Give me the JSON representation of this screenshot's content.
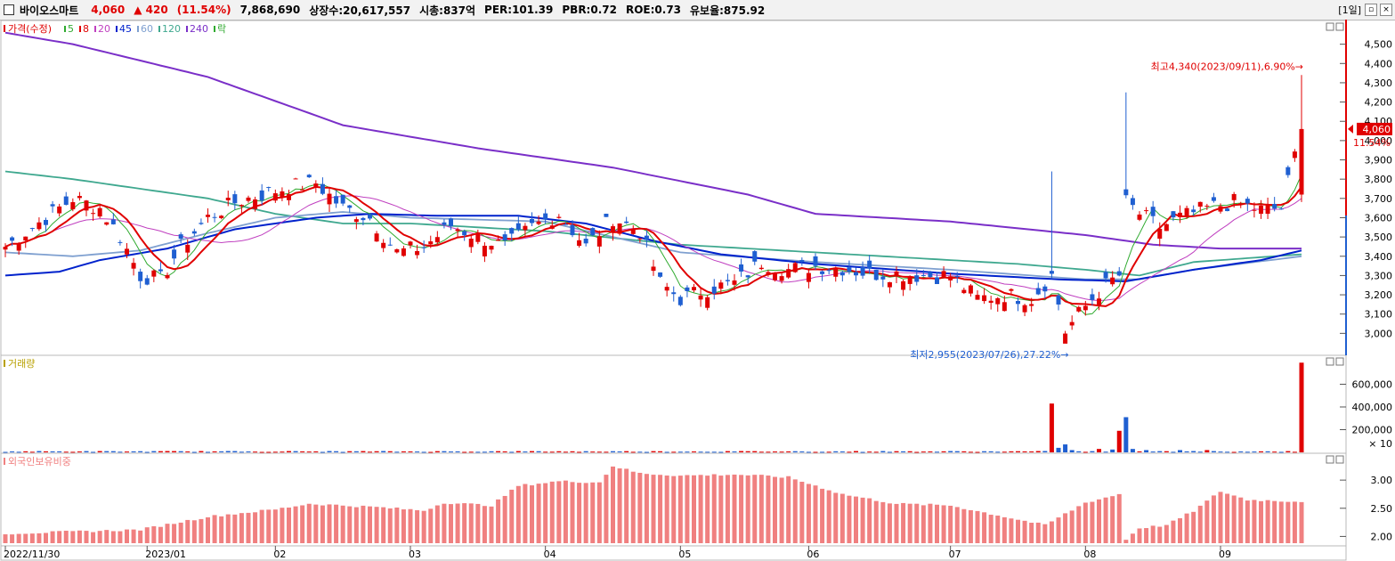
{
  "header": {
    "name": "바이오스마트",
    "price": "4,060",
    "change": "▲ 420",
    "change_pct": "(11.54%)",
    "volume": "7,868,690",
    "shares": "상장수:20,617,557",
    "mktcap": "시총:837억",
    "per": "PER:101.39",
    "pbr": "PBR:0.72",
    "roe": "ROE:0.73",
    "holding": "유보율:875.92",
    "period": "[1일]",
    "btn_restore": "▫",
    "btn_close": "×"
  },
  "colors": {
    "up": "#e00000",
    "down": "#1f5fd1",
    "ma5": "#2faa2f",
    "ma8": "#e00000",
    "ma20": "#c040c0",
    "ma45": "#0022cc",
    "ma60": "#7fa0d0",
    "ma120": "#3fa88f",
    "ma240": "#7a2fc8",
    "foreign": "#f08080"
  },
  "legend": {
    "price": {
      "label": "가격(수정)",
      "items": [
        {
          "label": "5",
          "color": "#2faa2f"
        },
        {
          "label": "8",
          "color": "#e00000"
        },
        {
          "label": "20",
          "color": "#c040c0"
        },
        {
          "label": "45",
          "color": "#0022cc"
        },
        {
          "label": "60",
          "color": "#7fa0d0"
        },
        {
          "label": "120",
          "color": "#3fa88f"
        },
        {
          "label": "240",
          "color": "#7a2fc8"
        },
        {
          "label": "락",
          "color": "#2faa2f"
        }
      ]
    },
    "volume": "거래량",
    "foreign": "외국인보유비중"
  },
  "chart_data": [
    {
      "type": "candlestick",
      "title": "가격(수정)",
      "y_ticks": [
        3000,
        3100,
        3200,
        3300,
        3400,
        3500,
        3600,
        3700,
        3800,
        3900,
        4000,
        4100,
        4200,
        4300,
        4400,
        4500
      ],
      "y_tick_labels": [
        "3,000",
        "3,100",
        "3,200",
        "3,300",
        "3,400",
        "3,500",
        "3,600",
        "3,700",
        "3,800",
        "3,900",
        "4,000",
        "4,100",
        "4,200",
        "4,300",
        "4,400",
        "4,500"
      ],
      "ylim": [
        2900,
        4600
      ],
      "x_labels": [
        "2022/11/30",
        "2023/01",
        "02",
        "03",
        "04",
        "05",
        "06",
        "07",
        "08",
        "09"
      ],
      "x_label_days": [
        0,
        21,
        40,
        60,
        80,
        100,
        119,
        140,
        160,
        180
      ],
      "n_days": 193,
      "close_path": [
        {
          "d": 0,
          "v": 3450
        },
        {
          "d": 6,
          "v": 3600
        },
        {
          "d": 10,
          "v": 3700
        },
        {
          "d": 14,
          "v": 3650
        },
        {
          "d": 17,
          "v": 3500
        },
        {
          "d": 20,
          "v": 3300
        },
        {
          "d": 23,
          "v": 3280
        },
        {
          "d": 26,
          "v": 3450
        },
        {
          "d": 30,
          "v": 3600
        },
        {
          "d": 34,
          "v": 3680
        },
        {
          "d": 38,
          "v": 3720
        },
        {
          "d": 42,
          "v": 3760
        },
        {
          "d": 46,
          "v": 3780
        },
        {
          "d": 50,
          "v": 3650
        },
        {
          "d": 54,
          "v": 3600
        },
        {
          "d": 58,
          "v": 3420
        },
        {
          "d": 62,
          "v": 3450
        },
        {
          "d": 66,
          "v": 3560
        },
        {
          "d": 70,
          "v": 3500
        },
        {
          "d": 74,
          "v": 3450
        },
        {
          "d": 78,
          "v": 3550
        },
        {
          "d": 82,
          "v": 3620
        },
        {
          "d": 86,
          "v": 3450
        },
        {
          "d": 90,
          "v": 3600
        },
        {
          "d": 94,
          "v": 3530
        },
        {
          "d": 97,
          "v": 3260
        },
        {
          "d": 100,
          "v": 3180
        },
        {
          "d": 104,
          "v": 3230
        },
        {
          "d": 108,
          "v": 3260
        },
        {
          "d": 112,
          "v": 3370
        },
        {
          "d": 116,
          "v": 3330
        },
        {
          "d": 120,
          "v": 3350
        },
        {
          "d": 124,
          "v": 3340
        },
        {
          "d": 128,
          "v": 3310
        },
        {
          "d": 132,
          "v": 3310
        },
        {
          "d": 136,
          "v": 3300
        },
        {
          "d": 140,
          "v": 3300
        },
        {
          "d": 144,
          "v": 3180
        },
        {
          "d": 148,
          "v": 3200
        },
        {
          "d": 152,
          "v": 3180
        },
        {
          "d": 155,
          "v": 3300
        },
        {
          "d": 157,
          "v": 3010
        },
        {
          "d": 159,
          "v": 3100
        },
        {
          "d": 161,
          "v": 3180
        },
        {
          "d": 163,
          "v": 3250
        },
        {
          "d": 165,
          "v": 3300
        },
        {
          "d": 166,
          "v": 3680
        },
        {
          "d": 168,
          "v": 3620
        },
        {
          "d": 171,
          "v": 3550
        },
        {
          "d": 174,
          "v": 3600
        },
        {
          "d": 178,
          "v": 3650
        },
        {
          "d": 182,
          "v": 3680
        },
        {
          "d": 186,
          "v": 3640
        },
        {
          "d": 189,
          "v": 3650
        },
        {
          "d": 192,
          "v": 4060
        }
      ],
      "ma240": [
        {
          "d": 0,
          "v": 4560
        },
        {
          "d": 10,
          "v": 4500
        },
        {
          "d": 30,
          "v": 4330
        },
        {
          "d": 50,
          "v": 4080
        },
        {
          "d": 70,
          "v": 3960
        },
        {
          "d": 90,
          "v": 3860
        },
        {
          "d": 110,
          "v": 3720
        },
        {
          "d": 120,
          "v": 3620
        },
        {
          "d": 140,
          "v": 3580
        },
        {
          "d": 160,
          "v": 3510
        },
        {
          "d": 170,
          "v": 3460
        },
        {
          "d": 180,
          "v": 3440
        },
        {
          "d": 192,
          "v": 3440
        }
      ],
      "ma120": [
        {
          "d": 0,
          "v": 3840
        },
        {
          "d": 10,
          "v": 3800
        },
        {
          "d": 20,
          "v": 3750
        },
        {
          "d": 30,
          "v": 3700
        },
        {
          "d": 40,
          "v": 3620
        },
        {
          "d": 50,
          "v": 3570
        },
        {
          "d": 60,
          "v": 3570
        },
        {
          "d": 80,
          "v": 3530
        },
        {
          "d": 100,
          "v": 3460
        },
        {
          "d": 120,
          "v": 3420
        },
        {
          "d": 140,
          "v": 3380
        },
        {
          "d": 150,
          "v": 3360
        },
        {
          "d": 160,
          "v": 3330
        },
        {
          "d": 168,
          "v": 3300
        },
        {
          "d": 176,
          "v": 3370
        },
        {
          "d": 192,
          "v": 3410
        }
      ],
      "ma60": [
        {
          "d": 0,
          "v": 3420
        },
        {
          "d": 10,
          "v": 3400
        },
        {
          "d": 20,
          "v": 3430
        },
        {
          "d": 30,
          "v": 3520
        },
        {
          "d": 40,
          "v": 3600
        },
        {
          "d": 50,
          "v": 3630
        },
        {
          "d": 60,
          "v": 3600
        },
        {
          "d": 80,
          "v": 3580
        },
        {
          "d": 100,
          "v": 3420
        },
        {
          "d": 120,
          "v": 3370
        },
        {
          "d": 140,
          "v": 3330
        },
        {
          "d": 160,
          "v": 3280
        },
        {
          "d": 168,
          "v": 3280
        },
        {
          "d": 176,
          "v": 3330
        },
        {
          "d": 192,
          "v": 3400
        }
      ],
      "ma45": [
        {
          "d": 0,
          "v": 3300
        },
        {
          "d": 8,
          "v": 3320
        },
        {
          "d": 14,
          "v": 3380
        },
        {
          "d": 24,
          "v": 3440
        },
        {
          "d": 34,
          "v": 3540
        },
        {
          "d": 46,
          "v": 3600
        },
        {
          "d": 54,
          "v": 3620
        },
        {
          "d": 64,
          "v": 3610
        },
        {
          "d": 76,
          "v": 3610
        },
        {
          "d": 86,
          "v": 3570
        },
        {
          "d": 96,
          "v": 3480
        },
        {
          "d": 106,
          "v": 3410
        },
        {
          "d": 120,
          "v": 3360
        },
        {
          "d": 140,
          "v": 3310
        },
        {
          "d": 156,
          "v": 3280
        },
        {
          "d": 166,
          "v": 3270
        },
        {
          "d": 176,
          "v": 3330
        },
        {
          "d": 186,
          "v": 3380
        },
        {
          "d": 192,
          "v": 3430
        }
      ],
      "high": {
        "label": "최고4,340(2023/09/11),6.90%→",
        "value": 4340,
        "day": 192
      },
      "low": {
        "label": "최저2,955(2023/07/26),27.22%→",
        "value": 2955,
        "day": 157
      },
      "current": {
        "price": "4,060",
        "pct": "11.54%",
        "value": 4060
      }
    },
    {
      "type": "bar",
      "title": "거래량",
      "y_ticks": [
        200000,
        400000,
        600000
      ],
      "y_tick_labels": [
        "200,000",
        "400,000",
        "600,000"
      ],
      "unit": "× 10",
      "ylim": [
        0,
        800000
      ],
      "base": 8000,
      "spikes": [
        {
          "d": 155,
          "v": 430000,
          "up": true
        },
        {
          "d": 156,
          "v": 40000,
          "up": false
        },
        {
          "d": 157,
          "v": 70000,
          "up": false
        },
        {
          "d": 158,
          "v": 20000,
          "up": false
        },
        {
          "d": 162,
          "v": 30000,
          "up": true
        },
        {
          "d": 164,
          "v": 25000,
          "up": false
        },
        {
          "d": 165,
          "v": 190000,
          "up": true
        },
        {
          "d": 166,
          "v": 310000,
          "up": false
        },
        {
          "d": 167,
          "v": 30000,
          "up": false
        },
        {
          "d": 169,
          "v": 20000,
          "up": false
        },
        {
          "d": 174,
          "v": 20000,
          "up": false
        },
        {
          "d": 178,
          "v": 20000,
          "up": true
        },
        {
          "d": 192,
          "v": 790000,
          "up": true
        }
      ]
    },
    {
      "type": "bar",
      "title": "외국인보유비중",
      "y_ticks": [
        2.0,
        2.5,
        3.0
      ],
      "y_tick_labels": [
        "2.00",
        "2.50",
        "3.00"
      ],
      "ylim": [
        1.88,
        3.35
      ],
      "path": [
        {
          "d": 0,
          "v": 2.05
        },
        {
          "d": 20,
          "v": 2.12
        },
        {
          "d": 30,
          "v": 2.35
        },
        {
          "d": 40,
          "v": 2.48
        },
        {
          "d": 45,
          "v": 2.58
        },
        {
          "d": 55,
          "v": 2.52
        },
        {
          "d": 62,
          "v": 2.46
        },
        {
          "d": 65,
          "v": 2.6
        },
        {
          "d": 72,
          "v": 2.55
        },
        {
          "d": 76,
          "v": 2.9
        },
        {
          "d": 82,
          "v": 2.98
        },
        {
          "d": 88,
          "v": 2.96
        },
        {
          "d": 90,
          "v": 3.25
        },
        {
          "d": 94,
          "v": 3.12
        },
        {
          "d": 100,
          "v": 3.08
        },
        {
          "d": 108,
          "v": 3.1
        },
        {
          "d": 116,
          "v": 3.05
        },
        {
          "d": 124,
          "v": 2.75
        },
        {
          "d": 132,
          "v": 2.58
        },
        {
          "d": 140,
          "v": 2.55
        },
        {
          "d": 148,
          "v": 2.35
        },
        {
          "d": 154,
          "v": 2.2
        },
        {
          "d": 157,
          "v": 2.4
        },
        {
          "d": 160,
          "v": 2.6
        },
        {
          "d": 165,
          "v": 2.75
        },
        {
          "d": 166,
          "v": 1.95
        },
        {
          "d": 168,
          "v": 2.15
        },
        {
          "d": 172,
          "v": 2.2
        },
        {
          "d": 176,
          "v": 2.45
        },
        {
          "d": 180,
          "v": 2.8
        },
        {
          "d": 184,
          "v": 2.65
        },
        {
          "d": 192,
          "v": 2.62
        }
      ]
    }
  ]
}
